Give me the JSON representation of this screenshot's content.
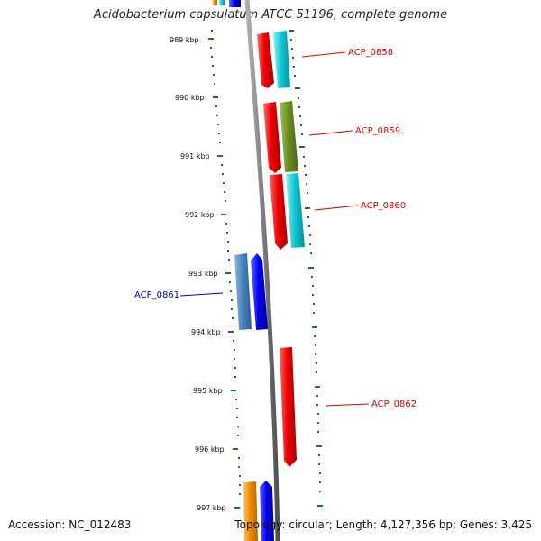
{
  "title": "Acidobacterium capsulatum ATCC 51196, complete genome",
  "footer": {
    "accession": "Accession: NC_012483",
    "topology": "Topology: circular; Length: 4,127,356 bp; Genes: 3,425"
  },
  "ruler_ticks": [
    {
      "label": "989 kbp",
      "kbp": 989
    },
    {
      "label": "990 kbp",
      "kbp": 990
    },
    {
      "label": "991 kbp",
      "kbp": 991
    },
    {
      "label": "992 kbp",
      "kbp": 992
    },
    {
      "label": "993 kbp",
      "kbp": 993
    },
    {
      "label": "994 kbp",
      "kbp": 994
    },
    {
      "label": "995 kbp",
      "kbp": 995
    },
    {
      "label": "996 kbp",
      "kbp": 996
    },
    {
      "label": "997 kbp",
      "kbp": 997
    }
  ],
  "gene_labels": [
    {
      "text": "ACP_0858",
      "color": "#dd0000"
    },
    {
      "text": "ACP_0859",
      "color": "#dd0000"
    },
    {
      "text": "ACP_0860",
      "color": "#dd0000"
    },
    {
      "text": "ACP_0861",
      "color": "#0000cc"
    },
    {
      "text": "ACP_0862",
      "color": "#dd0000"
    }
  ],
  "colors": {
    "forward_gene": "#ee0000",
    "reverse_gene": "#0000ee",
    "cyan_track": "#11c8d8",
    "olive_track": "#6b8e23",
    "steel_track": "#4a86c0",
    "orange_track": "#f08c00",
    "backbone": "#808080",
    "dotted_ruler": "#1a7a1a"
  }
}
